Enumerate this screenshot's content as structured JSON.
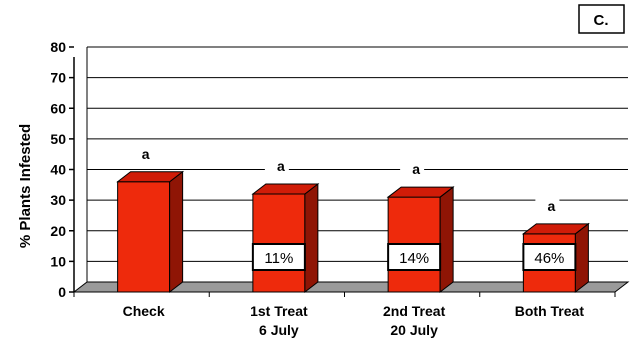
{
  "chart_data": {
    "type": "bar",
    "panel_label": "C.",
    "ylabel": "% Plants Infested",
    "xlabel": "",
    "ylim": [
      0,
      80
    ],
    "yticks": [
      0,
      10,
      20,
      30,
      40,
      50,
      60,
      70,
      80
    ],
    "grid": true,
    "categories": [
      {
        "line1": "Check",
        "line2": ""
      },
      {
        "line1": "1st Treat",
        "line2": "6 July"
      },
      {
        "line1": "2nd Treat",
        "line2": "20 July"
      },
      {
        "line1": "Both Treat",
        "line2": ""
      }
    ],
    "values": [
      36,
      32,
      31,
      19
    ],
    "significance_letters": [
      "a",
      "a",
      "a",
      "a"
    ],
    "reduction_labels": [
      "",
      "11%",
      "14%",
      "46%"
    ],
    "colors": {
      "bar_front": "#ee2a0c",
      "bar_side": "#8f1505",
      "bar_top": "#d01c08",
      "floor": "#9a9a9a"
    }
  }
}
